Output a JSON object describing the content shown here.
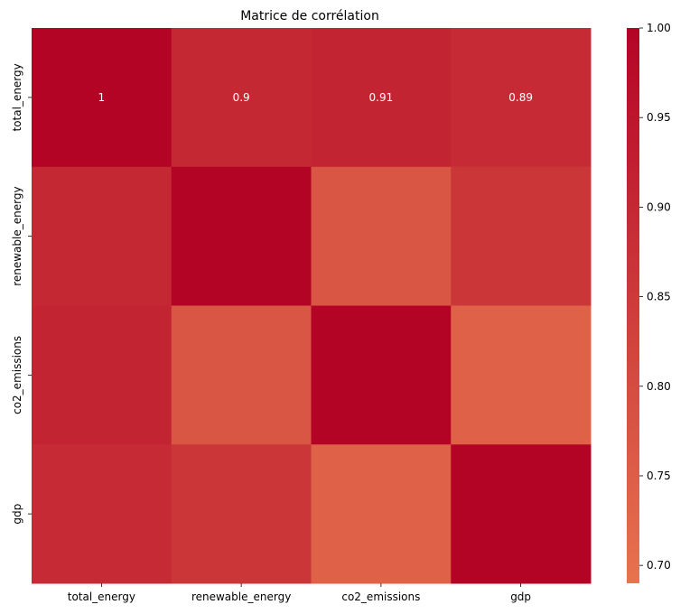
{
  "chart_data": {
    "type": "heatmap",
    "title": "Matrice de corrélation",
    "x_labels": [
      "total_energy",
      "renewable_energy",
      "co2_emissions",
      "gdp"
    ],
    "y_labels": [
      "total_energy",
      "renewable_energy",
      "co2_emissions",
      "gdp"
    ],
    "matrix": [
      [
        1.0,
        0.9,
        0.91,
        0.89
      ],
      [
        0.9,
        1.0,
        0.77,
        0.86
      ],
      [
        0.91,
        0.77,
        1.0,
        0.74
      ],
      [
        0.89,
        0.86,
        0.74,
        1.0
      ]
    ],
    "annotations_row": [
      "1",
      "0.9",
      "0.91",
      "0.89"
    ],
    "colorbar": {
      "min": 0.69,
      "max": 1.0,
      "ticks": [
        "1.00",
        "0.95",
        "0.90",
        "0.85",
        "0.80",
        "0.75",
        "0.70"
      ],
      "tick_values": [
        1.0,
        0.95,
        0.9,
        0.85,
        0.8,
        0.75,
        0.7
      ],
      "color_low": "#e7734f",
      "color_high": "#b40426",
      "colormap": "coolwarm"
    }
  }
}
